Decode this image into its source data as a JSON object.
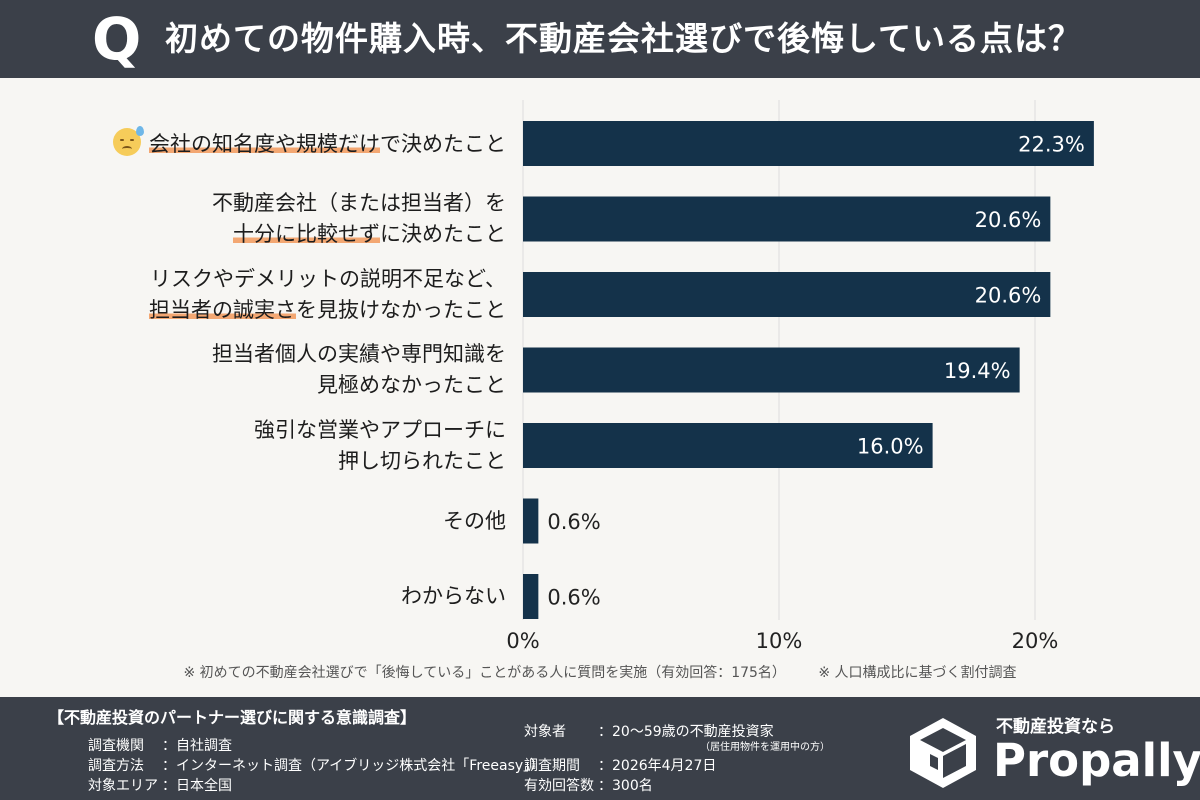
{
  "header": {
    "q_mark": "Q",
    "title": "初めての物件購入時、不動産会社選びで後悔している点は？"
  },
  "chart_data": {
    "type": "bar",
    "orientation": "horizontal",
    "categories": [
      [
        "会社の知名度や規模だけで決めたこと"
      ],
      [
        "不動産会社（または担当者）を",
        "十分に比較せずに決めたこと"
      ],
      [
        "リスクやデメリットの説明不足など、",
        "担当者の誠実さを見抜けなかったこと"
      ],
      [
        "担当者個人の実績や専門知識を",
        "見極めなかったこと"
      ],
      [
        "強引な営業やアプローチに",
        "押し切られたこと"
      ],
      [
        "その他"
      ],
      [
        "わからない"
      ]
    ],
    "values": [
      22.3,
      20.6,
      20.6,
      19.4,
      16.0,
      0.6,
      0.6
    ],
    "value_labels": [
      "22.3%",
      "20.6%",
      "20.6%",
      "19.4%",
      "16.0%",
      "0.6%",
      "0.6%"
    ],
    "highlight_phrases": [
      "会社の知名度や規模だけ",
      "十分に比較せず",
      "担当者の誠実さ"
    ],
    "highlight_color": "#f3a772",
    "first_row_icon": "sweat-face-icon",
    "xlim": [
      0,
      23
    ],
    "xticks": [
      0,
      10,
      20
    ],
    "xtick_labels": [
      "0%",
      "10%",
      "20%"
    ],
    "bar_color": "#14324a",
    "grid": "vertical"
  },
  "notes": {
    "note1": "※ 初めての不動産会社選びで「後悔している」ことがある人に質問を実施（有効回答：175名）",
    "note2": "※ 人口構成比に基づく割付調査"
  },
  "footer": {
    "survey_title": "【不動産投資のパートナー選びに関する意識調査】",
    "left_rows": [
      {
        "key": "調査機関",
        "value": "：自社調査"
      },
      {
        "key": "調査方法",
        "value": "：インターネット調査（アイブリッジ株式会社「Freeasy」）"
      },
      {
        "key": "対象エリア",
        "value": "：日本全国"
      }
    ],
    "right_rows": [
      {
        "key": "対象者",
        "value": "：20〜59歳の不動産投資家"
      },
      {
        "key": "調査期間",
        "value": "：2026年4月27日"
      },
      {
        "key": "有効回答数",
        "value": "：300名"
      }
    ],
    "target_sub_note": "（居住用物件を運用中の方）"
  },
  "brand": {
    "tagline": "不動産投資なら",
    "name": "Propally",
    "logo_icon": "propally-cube-logo-icon"
  }
}
